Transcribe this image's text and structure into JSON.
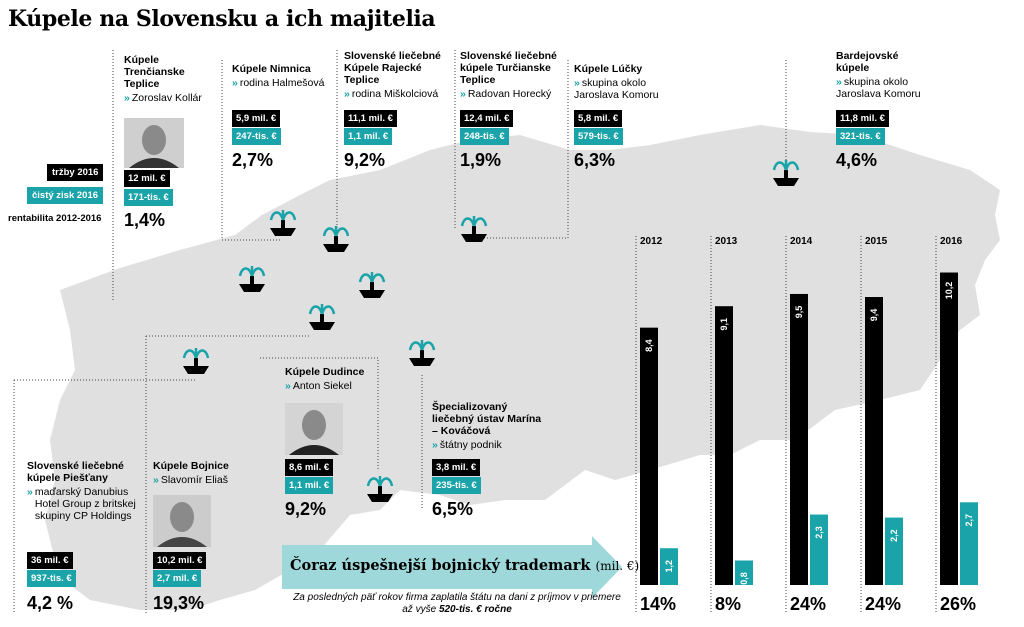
{
  "title": "Kúpele na Slovensku a ich majitelia",
  "legend": {
    "revenue": "tržby 2016",
    "profit": "čistý zisk 2016",
    "rentability": "rentabilita 2012-2016"
  },
  "spas": [
    {
      "name": "Kúpele Trenčianske Teplice",
      "owner": "Zoroslav Kollár",
      "revenue": "12 mil. €",
      "profit": "171-tis. €",
      "rentability": "1,4%"
    },
    {
      "name": "Kúpele Nimnica",
      "owner": "rodina Halmešová",
      "revenue": "5,9 mil. €",
      "profit": "247-tis. €",
      "rentability": "2,7%"
    },
    {
      "name": "Slovenské liečebné Kúpele Rajecké Teplice",
      "owner": "rodina Miškolciová",
      "revenue": "11,1 mil. €",
      "profit": "1,1 mil. €",
      "rentability": "9,2%"
    },
    {
      "name": "Slovenské liečebné kúpele Turčianske Teplice",
      "owner": "Radovan Horecký",
      "revenue": "12,4 mil. €",
      "profit": "248-tis. €",
      "rentability": "1,9%"
    },
    {
      "name": "Kúpele Lúčky",
      "owner": "skupina okolo Jaroslava Komoru",
      "revenue": "5,8 mil. €",
      "profit": "579-tis. €",
      "rentability": "6,3%"
    },
    {
      "name": "Bardejovské kúpele",
      "owner": "skupina okolo Jaroslava Komoru",
      "revenue": "11,8 mil. €",
      "profit": "321-tis. €",
      "rentability": "4,6%"
    },
    {
      "name": "Kúpele Dudince",
      "owner": "Anton Siekel",
      "revenue": "8,6 mil. €",
      "profit": "1,1 mil. €",
      "rentability": "9,2%"
    },
    {
      "name": "Špecializovaný liečebný ústav Marína – Kováčová",
      "owner": "štátny podnik",
      "revenue": "3,8 mil. €",
      "profit": "235-tis. €",
      "rentability": "6,5%"
    },
    {
      "name": "Kúpele Bojnice",
      "owner": "Slavomír Eliaš",
      "revenue": "10,2 mil. €",
      "profit": "2,7 mil. €",
      "rentability": "19,3%"
    },
    {
      "name": "Slovenské liečebné kúpele Piešťany",
      "owner": "maďarský Danubius Hotel Group z britskej skupiny CP Holdings",
      "revenue": "36 mil. €",
      "profit": "937-tis. €",
      "rentability": "4,2 %"
    }
  ],
  "arrow": {
    "label": "Čoraz úspešnejší bojnický trademark",
    "unit": "(mil. €)"
  },
  "note": {
    "text": "Za posledných päť rokov firma zaplatila štátu na dani z príjmov v priemere až vyše",
    "highlight": "520-tis. € ročne"
  },
  "colors": {
    "revenue": "#000000",
    "profit": "#1aa3a8",
    "map": "#e0e0e0"
  },
  "chart_data": {
    "type": "bar",
    "categories": [
      "2012",
      "2013",
      "2014",
      "2015",
      "2016"
    ],
    "series": [
      {
        "values": [
          8.4,
          9.1,
          9.5,
          9.4,
          10.2
        ],
        "labels": [
          "8,4",
          "9,1",
          "9,5",
          "9,4",
          "10,2"
        ]
      },
      {
        "values": [
          1.2,
          0.8,
          2.3,
          2.2,
          2.7
        ],
        "labels": [
          "1,2",
          "0,8",
          "2,3",
          "2,2",
          "2,7"
        ]
      }
    ],
    "rentability": [
      "14%",
      "8%",
      "24%",
      "24%",
      "26%"
    ],
    "ylabel": "mil. €",
    "ylim": [
      0,
      11
    ],
    "colors": [
      "#000000",
      "#1aa3a8"
    ]
  }
}
